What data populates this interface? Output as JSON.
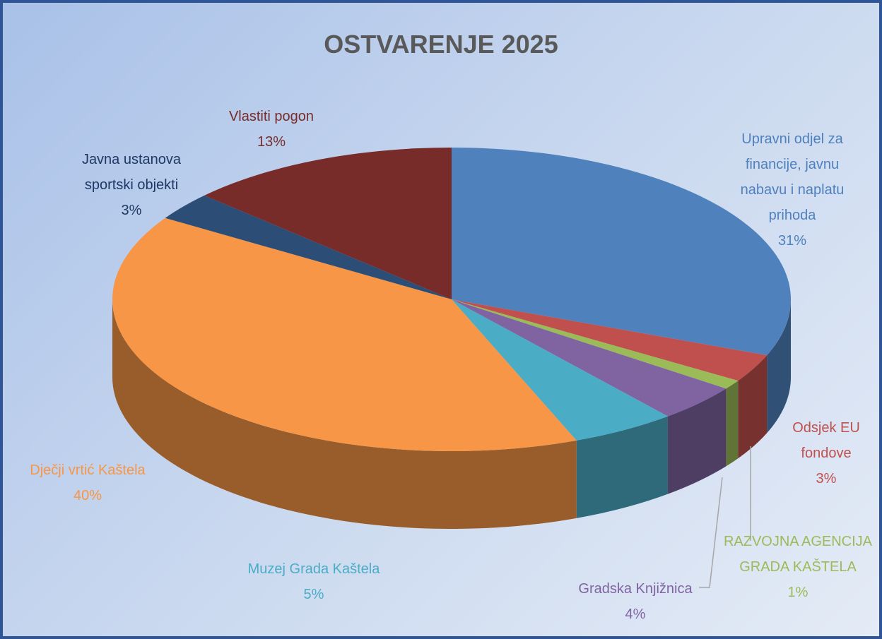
{
  "chart_data": {
    "type": "pie",
    "title": "OSTVARENJE 2025",
    "categories": [
      "Upravni odjel za financije, javnu nabavu i naplatu prihoda",
      "Odsjek EU fondove",
      "RAZVOJNA AGENCIJA GRADA KAŠTELA",
      "Gradska Knjižnica",
      "Muzej Grada Kaštela",
      "Dječji vrtić Kaštela",
      "Javna ustanova sportski objekti",
      "Vlastiti pogon"
    ],
    "values": [
      31,
      3,
      1,
      4,
      5,
      40,
      3,
      13
    ],
    "value_labels": [
      "31%",
      "3%",
      "1%",
      "4%",
      "5%",
      "40%",
      "3%",
      "13%"
    ],
    "colors": [
      "#4f81bd",
      "#c0504d",
      "#9bbb59",
      "#8064a2",
      "#4bacc6",
      "#f79646",
      "#2c4d75",
      "#772c2a"
    ]
  }
}
